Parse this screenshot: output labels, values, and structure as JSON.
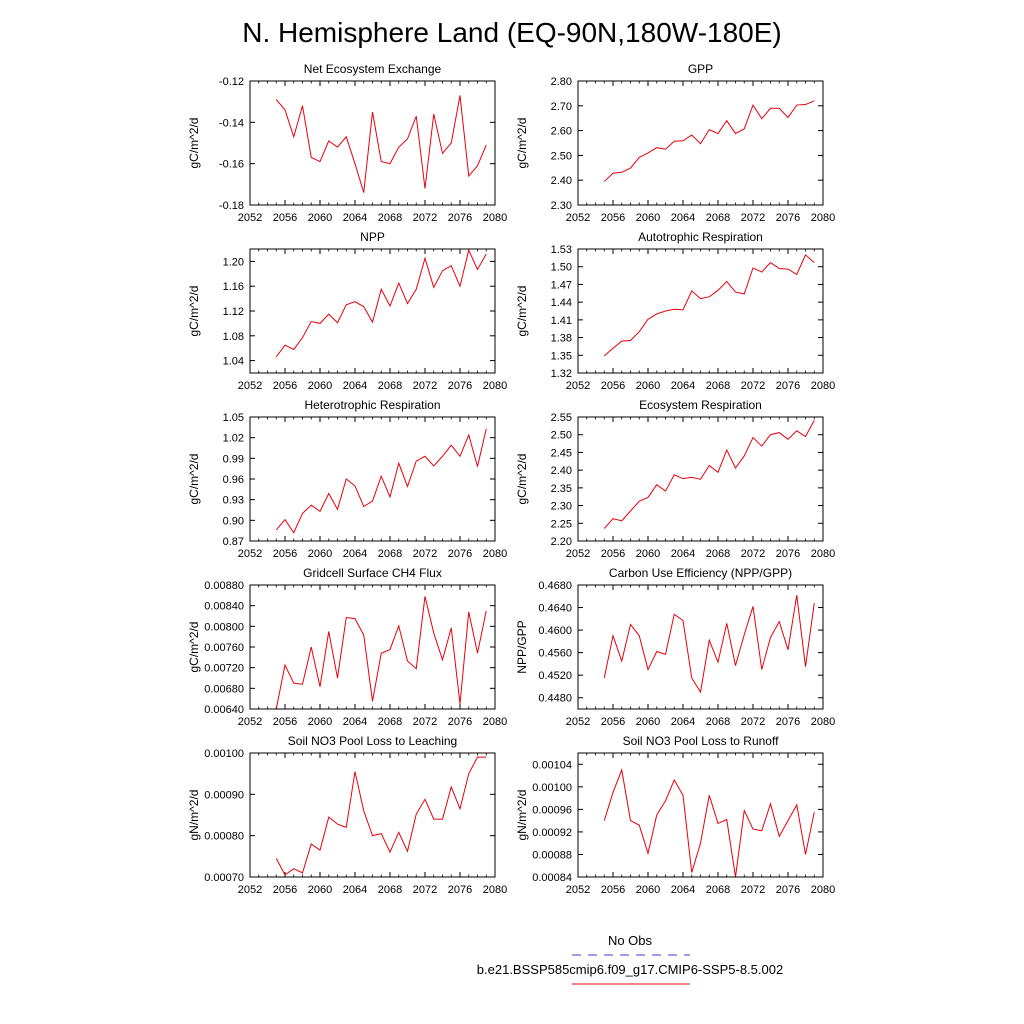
{
  "page": {
    "title": "N. Hemisphere Land (EQ-90N,180W-180E)"
  },
  "legend": {
    "obs_label": "No Obs",
    "obs_color": "#3b3bd6",
    "model_label": "b.e21.BSSP585cmip6.f09_g17.CMIP6-SSP5-8.5.002",
    "model_color": "#e8000b"
  },
  "chart_data": [
    {
      "type": "line",
      "title": "Net Ecosystem Exchange",
      "ylabel": "gC/m^2/d",
      "xlim": [
        2052,
        2080
      ],
      "xticks": [
        2052,
        2056,
        2060,
        2064,
        2068,
        2072,
        2076,
        2080
      ],
      "ylim": [
        -0.18,
        -0.12
      ],
      "yticks": [
        -0.18,
        -0.16,
        -0.14,
        -0.12
      ],
      "ytick_labels": [
        "-0.18",
        "-0.16",
        "-0.14",
        "-0.12"
      ],
      "x": [
        2055,
        2056,
        2057,
        2058,
        2059,
        2060,
        2061,
        2062,
        2063,
        2064,
        2065,
        2066,
        2067,
        2068,
        2069,
        2070,
        2071,
        2072,
        2073,
        2074,
        2075,
        2076,
        2077,
        2078,
        2079
      ],
      "y": [
        -0.129,
        -0.134,
        -0.147,
        -0.132,
        -0.157,
        -0.159,
        -0.149,
        -0.152,
        -0.147,
        -0.16,
        -0.174,
        -0.135,
        -0.159,
        -0.16,
        -0.152,
        -0.148,
        -0.137,
        -0.172,
        -0.136,
        -0.155,
        -0.15,
        -0.127,
        -0.166,
        -0.161,
        -0.151
      ],
      "color": "#e8000b"
    },
    {
      "type": "line",
      "title": "GPP",
      "ylabel": "gC/m^2/d",
      "xlim": [
        2052,
        2080
      ],
      "xticks": [
        2052,
        2056,
        2060,
        2064,
        2068,
        2072,
        2076,
        2080
      ],
      "ylim": [
        2.3,
        2.8
      ],
      "yticks": [
        2.3,
        2.4,
        2.5,
        2.6,
        2.7,
        2.8
      ],
      "ytick_labels": [
        "2.30",
        "2.40",
        "2.50",
        "2.60",
        "2.70",
        "2.80"
      ],
      "x": [
        2055,
        2056,
        2057,
        2058,
        2059,
        2060,
        2061,
        2062,
        2063,
        2064,
        2065,
        2066,
        2067,
        2068,
        2069,
        2070,
        2071,
        2072,
        2073,
        2074,
        2075,
        2076,
        2077,
        2078,
        2079
      ],
      "y": [
        2.395,
        2.428,
        2.432,
        2.449,
        2.492,
        2.51,
        2.531,
        2.525,
        2.557,
        2.559,
        2.582,
        2.547,
        2.604,
        2.588,
        2.64,
        2.588,
        2.607,
        2.703,
        2.648,
        2.69,
        2.69,
        2.653,
        2.703,
        2.705,
        2.72
      ],
      "color": "#e8000b"
    },
    {
      "type": "line",
      "title": "NPP",
      "ylabel": "gC/m^2/d",
      "xlim": [
        2052,
        2080
      ],
      "xticks": [
        2052,
        2056,
        2060,
        2064,
        2068,
        2072,
        2076,
        2080
      ],
      "ylim": [
        1.02,
        1.22
      ],
      "yticks": [
        1.04,
        1.08,
        1.12,
        1.16,
        1.2
      ],
      "ytick_labels": [
        "1.04",
        "1.08",
        "1.12",
        "1.16",
        "1.20"
      ],
      "x": [
        2055,
        2056,
        2057,
        2058,
        2059,
        2060,
        2061,
        2062,
        2063,
        2064,
        2065,
        2066,
        2067,
        2068,
        2069,
        2070,
        2071,
        2072,
        2073,
        2074,
        2075,
        2076,
        2077,
        2078,
        2079
      ],
      "y": [
        1.046,
        1.065,
        1.058,
        1.077,
        1.103,
        1.1,
        1.115,
        1.101,
        1.13,
        1.135,
        1.127,
        1.102,
        1.155,
        1.128,
        1.165,
        1.132,
        1.155,
        1.205,
        1.158,
        1.185,
        1.193,
        1.16,
        1.218,
        1.187,
        1.212
      ],
      "color": "#e8000b"
    },
    {
      "type": "line",
      "title": "Autotrophic Respiration",
      "ylabel": "gC/m^2/d",
      "xlim": [
        2052,
        2080
      ],
      "xticks": [
        2052,
        2056,
        2060,
        2064,
        2068,
        2072,
        2076,
        2080
      ],
      "ylim": [
        1.32,
        1.53
      ],
      "yticks": [
        1.32,
        1.35,
        1.38,
        1.41,
        1.44,
        1.47,
        1.5,
        1.53
      ],
      "ytick_labels": [
        "1.32",
        "1.35",
        "1.38",
        "1.41",
        "1.44",
        "1.47",
        "1.50",
        "1.53"
      ],
      "x": [
        2055,
        2056,
        2057,
        2058,
        2059,
        2060,
        2061,
        2062,
        2063,
        2064,
        2065,
        2066,
        2067,
        2068,
        2069,
        2070,
        2071,
        2072,
        2073,
        2074,
        2075,
        2076,
        2077,
        2078,
        2079
      ],
      "y": [
        1.349,
        1.362,
        1.374,
        1.375,
        1.39,
        1.411,
        1.42,
        1.425,
        1.428,
        1.427,
        1.459,
        1.446,
        1.449,
        1.46,
        1.475,
        1.457,
        1.454,
        1.498,
        1.491,
        1.507,
        1.497,
        1.496,
        1.487,
        1.52,
        1.507
      ],
      "color": "#e8000b"
    },
    {
      "type": "line",
      "title": "Heterotrophic Respiration",
      "ylabel": "gC/m^2/d",
      "xlim": [
        2052,
        2080
      ],
      "xticks": [
        2052,
        2056,
        2060,
        2064,
        2068,
        2072,
        2076,
        2080
      ],
      "ylim": [
        0.87,
        1.05
      ],
      "yticks": [
        0.87,
        0.9,
        0.93,
        0.96,
        0.99,
        1.02,
        1.05
      ],
      "ytick_labels": [
        "0.87",
        "0.90",
        "0.93",
        "0.96",
        "0.99",
        "1.02",
        "1.05"
      ],
      "x": [
        2055,
        2056,
        2057,
        2058,
        2059,
        2060,
        2061,
        2062,
        2063,
        2064,
        2065,
        2066,
        2067,
        2068,
        2069,
        2070,
        2071,
        2072,
        2073,
        2074,
        2075,
        2076,
        2077,
        2078,
        2079
      ],
      "y": [
        0.886,
        0.901,
        0.882,
        0.91,
        0.922,
        0.913,
        0.939,
        0.916,
        0.96,
        0.95,
        0.92,
        0.928,
        0.964,
        0.934,
        0.983,
        0.949,
        0.986,
        0.993,
        0.979,
        0.993,
        1.009,
        0.993,
        1.024,
        0.978,
        1.033
      ],
      "color": "#e8000b"
    },
    {
      "type": "line",
      "title": "Ecosystem Respiration",
      "ylabel": "gC/m^2/d",
      "xlim": [
        2052,
        2080
      ],
      "xticks": [
        2052,
        2056,
        2060,
        2064,
        2068,
        2072,
        2076,
        2080
      ],
      "ylim": [
        2.2,
        2.55
      ],
      "yticks": [
        2.2,
        2.25,
        2.3,
        2.35,
        2.4,
        2.45,
        2.5,
        2.55
      ],
      "ytick_labels": [
        "2.20",
        "2.25",
        "2.30",
        "2.35",
        "2.40",
        "2.45",
        "2.50",
        "2.55"
      ],
      "x": [
        2055,
        2056,
        2057,
        2058,
        2059,
        2060,
        2061,
        2062,
        2063,
        2064,
        2065,
        2066,
        2067,
        2068,
        2069,
        2070,
        2071,
        2072,
        2073,
        2074,
        2075,
        2076,
        2077,
        2078,
        2079
      ],
      "y": [
        2.235,
        2.263,
        2.257,
        2.285,
        2.312,
        2.323,
        2.359,
        2.341,
        2.387,
        2.376,
        2.38,
        2.374,
        2.413,
        2.394,
        2.457,
        2.406,
        2.44,
        2.492,
        2.468,
        2.5,
        2.506,
        2.487,
        2.511,
        2.495,
        2.54
      ],
      "color": "#e8000b"
    },
    {
      "type": "line",
      "title": "Gridcell Surface CH4 Flux",
      "ylabel": "gC/m^2/d",
      "xlim": [
        2052,
        2080
      ],
      "xticks": [
        2052,
        2056,
        2060,
        2064,
        2068,
        2072,
        2076,
        2080
      ],
      "ylim": [
        0.0064,
        0.0088
      ],
      "yticks": [
        0.0064,
        0.0068,
        0.0072,
        0.0076,
        0.008,
        0.0084,
        0.0088
      ],
      "ytick_labels": [
        "0.00640",
        "0.00680",
        "0.00720",
        "0.00760",
        "0.00800",
        "0.00840",
        "0.00880"
      ],
      "x": [
        2055,
        2056,
        2057,
        2058,
        2059,
        2060,
        2061,
        2062,
        2063,
        2064,
        2065,
        2066,
        2067,
        2068,
        2069,
        2070,
        2071,
        2072,
        2073,
        2074,
        2075,
        2076,
        2077,
        2078,
        2079
      ],
      "y": [
        0.0064,
        0.00725,
        0.0069,
        0.00688,
        0.0076,
        0.00683,
        0.0079,
        0.007,
        0.00817,
        0.00815,
        0.00783,
        0.00655,
        0.00748,
        0.00755,
        0.00801,
        0.00733,
        0.00718,
        0.00858,
        0.00787,
        0.00735,
        0.00797,
        0.0065,
        0.00828,
        0.00748,
        0.0083
      ],
      "color": "#e8000b"
    },
    {
      "type": "line",
      "title": "Carbon Use Efficiency (NPP/GPP)",
      "ylabel": "NPP/GPP",
      "xlim": [
        2052,
        2080
      ],
      "xticks": [
        2052,
        2056,
        2060,
        2064,
        2068,
        2072,
        2076,
        2080
      ],
      "ylim": [
        0.446,
        0.468
      ],
      "yticks": [
        0.448,
        0.452,
        0.456,
        0.46,
        0.464,
        0.468
      ],
      "ytick_labels": [
        "0.4480",
        "0.4520",
        "0.4560",
        "0.4600",
        "0.4640",
        "0.4680"
      ],
      "x": [
        2055,
        2056,
        2057,
        2058,
        2059,
        2060,
        2061,
        2062,
        2063,
        2064,
        2065,
        2066,
        2067,
        2068,
        2069,
        2070,
        2071,
        2072,
        2073,
        2074,
        2075,
        2076,
        2077,
        2078,
        2079
      ],
      "y": [
        0.4515,
        0.459,
        0.4545,
        0.461,
        0.459,
        0.453,
        0.4562,
        0.4557,
        0.4628,
        0.4617,
        0.4515,
        0.449,
        0.4582,
        0.4543,
        0.4612,
        0.4537,
        0.4592,
        0.4642,
        0.453,
        0.4587,
        0.4615,
        0.4565,
        0.4662,
        0.4535,
        0.4648
      ],
      "color": "#e8000b"
    },
    {
      "type": "line",
      "title": "Soil NO3 Pool Loss to Leaching",
      "ylabel": "gN/m^2/d",
      "xlim": [
        2052,
        2080
      ],
      "xticks": [
        2052,
        2056,
        2060,
        2064,
        2068,
        2072,
        2076,
        2080
      ],
      "ylim": [
        0.0007,
        0.001
      ],
      "yticks": [
        0.0007,
        0.0008,
        0.0009,
        0.001
      ],
      "ytick_labels": [
        "0.00070",
        "0.00080",
        "0.00090",
        "0.00100"
      ],
      "x": [
        2055,
        2056,
        2057,
        2058,
        2059,
        2060,
        2061,
        2062,
        2063,
        2064,
        2065,
        2066,
        2067,
        2068,
        2069,
        2070,
        2071,
        2072,
        2073,
        2074,
        2075,
        2076,
        2077,
        2078,
        2079
      ],
      "y": [
        0.000745,
        0.000705,
        0.00072,
        0.00071,
        0.00078,
        0.000765,
        0.000845,
        0.000828,
        0.00082,
        0.000955,
        0.00086,
        0.0008,
        0.000805,
        0.00076,
        0.000808,
        0.000762,
        0.000852,
        0.000888,
        0.00084,
        0.00084,
        0.000918,
        0.000865,
        0.00095,
        0.00099,
        0.00099
      ],
      "color": "#e8000b"
    },
    {
      "type": "line",
      "title": "Soil NO3 Pool Loss to Runoff",
      "ylabel": "gN/m^2/d",
      "xlim": [
        2052,
        2080
      ],
      "xticks": [
        2052,
        2056,
        2060,
        2064,
        2068,
        2072,
        2076,
        2080
      ],
      "ylim": [
        0.00084,
        0.00106
      ],
      "yticks": [
        0.00084,
        0.00088,
        0.00092,
        0.00096,
        0.001,
        0.00104
      ],
      "ytick_labels": [
        "0.00084",
        "0.00088",
        "0.00092",
        "0.00096",
        "0.00100",
        "0.00104"
      ],
      "x": [
        2055,
        2056,
        2057,
        2058,
        2059,
        2060,
        2061,
        2062,
        2063,
        2064,
        2065,
        2066,
        2067,
        2068,
        2069,
        2070,
        2071,
        2072,
        2073,
        2074,
        2075,
        2076,
        2077,
        2078,
        2079
      ],
      "y": [
        0.00094,
        0.00099,
        0.00103,
        0.00094,
        0.000932,
        0.000882,
        0.00095,
        0.000975,
        0.001012,
        0.000985,
        0.000848,
        0.0009,
        0.000985,
        0.000935,
        0.000942,
        0.00084,
        0.000958,
        0.000925,
        0.000922,
        0.00097,
        0.000912,
        0.00094,
        0.000968,
        0.00088,
        0.000955
      ],
      "color": "#e8000b"
    }
  ]
}
